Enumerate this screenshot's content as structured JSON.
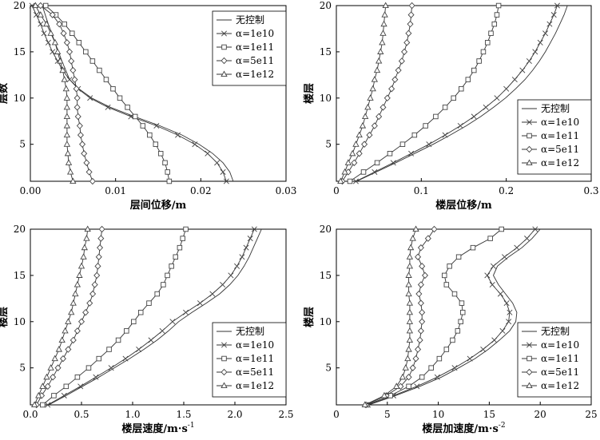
{
  "chart_data": [
    {
      "type": "line",
      "xlabel": "层间位移/m",
      "ylabel": "层数",
      "xlim": [
        0,
        0.03
      ],
      "ylim": [
        1,
        20
      ],
      "xticks": [
        "0.00",
        "0.01",
        "0.02",
        "0.03"
      ],
      "yticks": [
        "5",
        "10",
        "15",
        "20"
      ],
      "legend_position": "top-right",
      "series": [
        {
          "name": "无控制",
          "marker": "none",
          "x": [
            0.0238,
            0.0234,
            0.0226,
            0.0214,
            0.0198,
            0.0178,
            0.0152,
            0.0122,
            0.0094,
            0.0072,
            0.0057,
            0.0046,
            0.0037,
            0.0029,
            0.0021,
            0.0014
          ],
          "y": [
            1,
            2,
            3,
            4,
            5,
            6,
            7,
            8,
            9,
            10,
            11,
            12,
            14,
            16,
            18,
            20
          ]
        },
        {
          "name": "α=1e10",
          "marker": "x",
          "x": [
            0.023,
            0.0226,
            0.0219,
            0.0208,
            0.0193,
            0.0173,
            0.0148,
            0.0118,
            0.0091,
            0.007,
            0.0056,
            0.0046,
            0.0038,
            0.0032,
            0.0026,
            0.0021,
            0.0016,
            0.0012,
            0.0007,
            0.0002
          ],
          "y": [
            1,
            2,
            3,
            4,
            5,
            6,
            7,
            8,
            9,
            10,
            11,
            12,
            13,
            14,
            15,
            16,
            17,
            18,
            19,
            20
          ]
        },
        {
          "name": "α=1e11",
          "marker": "square",
          "x": [
            0.0163,
            0.0161,
            0.0158,
            0.0153,
            0.0147,
            0.014,
            0.0132,
            0.0123,
            0.0114,
            0.0105,
            0.0097,
            0.0089,
            0.0081,
            0.0073,
            0.0065,
            0.0057,
            0.0049,
            0.004,
            0.003,
            0.0018
          ],
          "y": [
            1,
            2,
            3,
            4,
            5,
            6,
            7,
            8,
            9,
            10,
            11,
            12,
            13,
            14,
            15,
            16,
            17,
            18,
            19,
            20
          ]
        },
        {
          "name": "α=5e11",
          "marker": "diamond",
          "x": [
            0.0073,
            0.0069,
            0.0066,
            0.0063,
            0.0061,
            0.0059,
            0.0058,
            0.0056,
            0.0055,
            0.0055,
            0.0054,
            0.0052,
            0.005,
            0.0048,
            0.0046,
            0.0043,
            0.0039,
            0.0034,
            0.0026,
            0.0012
          ],
          "y": [
            1,
            2,
            3,
            4,
            5,
            6,
            7,
            8,
            9,
            10,
            11,
            12,
            13,
            14,
            15,
            16,
            17,
            18,
            19,
            20
          ]
        },
        {
          "name": "α=1e12",
          "marker": "triangle",
          "x": [
            0.005,
            0.0047,
            0.0045,
            0.0044,
            0.0043,
            0.0043,
            0.0043,
            0.0043,
            0.0043,
            0.0043,
            0.0042,
            0.004,
            0.0038,
            0.0035,
            0.0032,
            0.0029,
            0.0024,
            0.0019,
            0.0012,
            0.0006
          ],
          "y": [
            1,
            2,
            3,
            4,
            5,
            6,
            7,
            8,
            9,
            10,
            11,
            12,
            13,
            14,
            15,
            16,
            17,
            18,
            19,
            20
          ]
        }
      ]
    },
    {
      "type": "line",
      "xlabel": "楼层位移/m",
      "ylabel": "楼层",
      "xlim": [
        0,
        0.3
      ],
      "ylim": [
        1,
        20
      ],
      "xticks": [
        "0",
        "0.1",
        "0.2",
        "0.3"
      ],
      "yticks": [
        "5",
        "10",
        "15",
        "20"
      ],
      "legend_position": "bottom-right",
      "series": [
        {
          "name": "无控制",
          "marker": "none",
          "x": [
            0.024,
            0.047,
            0.07,
            0.092,
            0.114,
            0.134,
            0.153,
            0.17,
            0.185,
            0.199,
            0.211,
            0.222,
            0.231,
            0.239,
            0.246,
            0.252,
            0.258,
            0.263,
            0.268,
            0.272
          ],
          "y": [
            1,
            2,
            3,
            4,
            5,
            6,
            7,
            8,
            9,
            10,
            11,
            12,
            13,
            14,
            15,
            16,
            17,
            18,
            19,
            20
          ]
        },
        {
          "name": "α=1e10",
          "marker": "x",
          "x": [
            0.023,
            0.045,
            0.067,
            0.088,
            0.109,
            0.128,
            0.146,
            0.162,
            0.176,
            0.189,
            0.2,
            0.21,
            0.219,
            0.227,
            0.234,
            0.24,
            0.246,
            0.251,
            0.256,
            0.26
          ],
          "y": [
            1,
            2,
            3,
            4,
            5,
            6,
            7,
            8,
            9,
            10,
            11,
            12,
            13,
            14,
            15,
            16,
            17,
            18,
            19,
            20
          ]
        },
        {
          "name": "α=1e11",
          "marker": "square",
          "x": [
            0.016,
            0.032,
            0.048,
            0.063,
            0.078,
            0.092,
            0.105,
            0.117,
            0.128,
            0.138,
            0.147,
            0.155,
            0.162,
            0.168,
            0.173,
            0.178,
            0.182,
            0.186,
            0.189,
            0.191
          ],
          "y": [
            1,
            2,
            3,
            4,
            5,
            6,
            7,
            8,
            9,
            10,
            11,
            12,
            13,
            14,
            15,
            16,
            17,
            18,
            19,
            20
          ]
        },
        {
          "name": "α=5e11",
          "marker": "diamond",
          "x": [
            0.007,
            0.014,
            0.021,
            0.027,
            0.033,
            0.039,
            0.045,
            0.05,
            0.055,
            0.06,
            0.065,
            0.069,
            0.073,
            0.077,
            0.08,
            0.083,
            0.085,
            0.087,
            0.088,
            0.089
          ],
          "y": [
            1,
            2,
            3,
            4,
            5,
            6,
            7,
            8,
            9,
            10,
            11,
            12,
            13,
            14,
            15,
            16,
            17,
            18,
            19,
            20
          ]
        },
        {
          "name": "α=1e12",
          "marker": "triangle",
          "x": [
            0.005,
            0.01,
            0.014,
            0.019,
            0.023,
            0.027,
            0.031,
            0.034,
            0.037,
            0.04,
            0.043,
            0.045,
            0.048,
            0.05,
            0.052,
            0.054,
            0.055,
            0.056,
            0.057,
            0.058
          ],
          "y": [
            1,
            2,
            3,
            4,
            5,
            6,
            7,
            8,
            9,
            10,
            11,
            12,
            13,
            14,
            15,
            16,
            17,
            18,
            19,
            20
          ]
        }
      ]
    },
    {
      "type": "line",
      "xlabel": "楼层速度/m·s",
      "xlabel_sup": "-1",
      "ylabel": "楼层",
      "xlim": [
        0,
        2.5
      ],
      "ylim": [
        1,
        20
      ],
      "xticks": [
        "0.0",
        "0.5",
        "1.0",
        "1.5",
        "2.0",
        "2.5"
      ],
      "yticks": [
        "5",
        "10",
        "15",
        "20"
      ],
      "legend_position": "bottom-right",
      "series": [
        {
          "name": "无控制",
          "marker": "none",
          "x": [
            0.18,
            0.35,
            0.51,
            0.67,
            0.82,
            0.97,
            1.11,
            1.24,
            1.35,
            1.45,
            1.58,
            1.72,
            1.85,
            1.95,
            2.03,
            2.09,
            2.14,
            2.18,
            2.22,
            2.26
          ],
          "y": [
            1,
            2,
            3,
            4,
            5,
            6,
            7,
            8,
            9,
            10,
            11,
            12,
            13,
            14,
            15,
            16,
            17,
            18,
            19,
            20
          ]
        },
        {
          "name": "α=1e10",
          "marker": "x",
          "x": [
            0.17,
            0.33,
            0.49,
            0.64,
            0.79,
            0.93,
            1.06,
            1.18,
            1.29,
            1.39,
            1.52,
            1.66,
            1.78,
            1.88,
            1.96,
            2.02,
            2.07,
            2.11,
            2.15,
            2.19
          ],
          "y": [
            1,
            2,
            3,
            4,
            5,
            6,
            7,
            8,
            9,
            10,
            11,
            12,
            13,
            14,
            15,
            16,
            17,
            18,
            19,
            20
          ]
        },
        {
          "name": "α=1e11",
          "marker": "square",
          "x": [
            0.12,
            0.23,
            0.35,
            0.46,
            0.57,
            0.67,
            0.77,
            0.86,
            0.94,
            1.01,
            1.08,
            1.16,
            1.24,
            1.3,
            1.34,
            1.38,
            1.42,
            1.46,
            1.49,
            1.52
          ],
          "y": [
            1,
            2,
            3,
            4,
            5,
            6,
            7,
            8,
            9,
            10,
            11,
            12,
            13,
            14,
            15,
            16,
            17,
            18,
            19,
            20
          ]
        },
        {
          "name": "α=5e11",
          "marker": "diamond",
          "x": [
            0.06,
            0.11,
            0.17,
            0.22,
            0.27,
            0.32,
            0.37,
            0.42,
            0.46,
            0.5,
            0.54,
            0.58,
            0.61,
            0.63,
            0.65,
            0.66,
            0.67,
            0.68,
            0.69,
            0.7
          ],
          "y": [
            1,
            2,
            3,
            4,
            5,
            6,
            7,
            8,
            9,
            10,
            11,
            12,
            13,
            14,
            15,
            16,
            17,
            18,
            19,
            20
          ]
        },
        {
          "name": "α=1e12",
          "marker": "triangle",
          "x": [
            0.04,
            0.08,
            0.12,
            0.16,
            0.2,
            0.24,
            0.28,
            0.31,
            0.34,
            0.37,
            0.4,
            0.42,
            0.44,
            0.46,
            0.48,
            0.5,
            0.52,
            0.53,
            0.55,
            0.56
          ],
          "y": [
            1,
            2,
            3,
            4,
            5,
            6,
            7,
            8,
            9,
            10,
            11,
            12,
            13,
            14,
            15,
            16,
            17,
            18,
            19,
            20
          ]
        }
      ]
    },
    {
      "type": "line",
      "xlabel": "楼层加速度/m·s",
      "xlabel_sup": "-2",
      "ylabel": "楼层",
      "xlim": [
        0,
        25
      ],
      "ylim": [
        1,
        20
      ],
      "xticks": [
        "0",
        "5",
        "10",
        "15",
        "20",
        "25"
      ],
      "yticks": [
        "5",
        "10",
        "15",
        "20"
      ],
      "legend_position": "bottom-right",
      "series": [
        {
          "name": "无控制",
          "marker": "none",
          "x": [
            3.2,
            5.8,
            8.2,
            10.3,
            12.0,
            13.6,
            14.9,
            16.0,
            17.0,
            17.6,
            17.7,
            17.3,
            16.6,
            15.9,
            15.4,
            15.8,
            16.9,
            18.2,
            19.2,
            20.0
          ],
          "y": [
            1,
            2,
            3,
            4,
            5,
            6,
            7,
            8,
            9,
            10,
            11,
            12,
            13,
            14,
            15,
            16,
            17,
            18,
            19,
            20
          ]
        },
        {
          "name": "α=1e10",
          "marker": "x",
          "x": [
            3.1,
            5.6,
            7.9,
            9.9,
            11.6,
            13.1,
            14.4,
            15.5,
            16.3,
            16.9,
            17.0,
            16.7,
            16.1,
            15.3,
            14.8,
            15.4,
            16.5,
            17.7,
            18.7,
            19.5
          ],
          "y": [
            1,
            2,
            3,
            4,
            5,
            6,
            7,
            8,
            9,
            10,
            11,
            12,
            13,
            14,
            15,
            16,
            17,
            18,
            19,
            20
          ]
        },
        {
          "name": "α=1e11",
          "marker": "square",
          "x": [
            3.0,
            5.3,
            7.1,
            8.4,
            9.3,
            10.1,
            10.8,
            11.4,
            11.9,
            12.2,
            12.4,
            12.3,
            11.6,
            10.8,
            10.6,
            11.1,
            12.0,
            13.4,
            15.1,
            16.2
          ],
          "y": [
            1,
            2,
            3,
            4,
            5,
            6,
            7,
            8,
            9,
            10,
            11,
            12,
            13,
            14,
            15,
            16,
            17,
            18,
            19,
            20
          ]
        },
        {
          "name": "α=5e11",
          "marker": "diamond",
          "x": [
            2.9,
            4.9,
            6.3,
            7.1,
            7.5,
            7.8,
            8.0,
            8.2,
            8.3,
            8.4,
            8.4,
            8.3,
            8.1,
            8.3,
            8.7,
            8.4,
            8.0,
            8.3,
            9.0,
            9.6
          ],
          "y": [
            1,
            2,
            3,
            4,
            5,
            6,
            7,
            8,
            9,
            10,
            11,
            12,
            13,
            14,
            15,
            16,
            17,
            18,
            19,
            20
          ]
        },
        {
          "name": "α=1e12",
          "marker": "triangle",
          "x": [
            2.8,
            4.7,
            5.9,
            6.5,
            6.8,
            7.0,
            7.1,
            7.2,
            7.2,
            7.2,
            7.2,
            7.2,
            7.1,
            7.1,
            7.1,
            7.2,
            7.2,
            7.3,
            7.5,
            7.8
          ],
          "y": [
            1,
            2,
            3,
            4,
            5,
            6,
            7,
            8,
            9,
            10,
            11,
            12,
            13,
            14,
            15,
            16,
            17,
            18,
            19,
            20
          ]
        }
      ]
    }
  ]
}
